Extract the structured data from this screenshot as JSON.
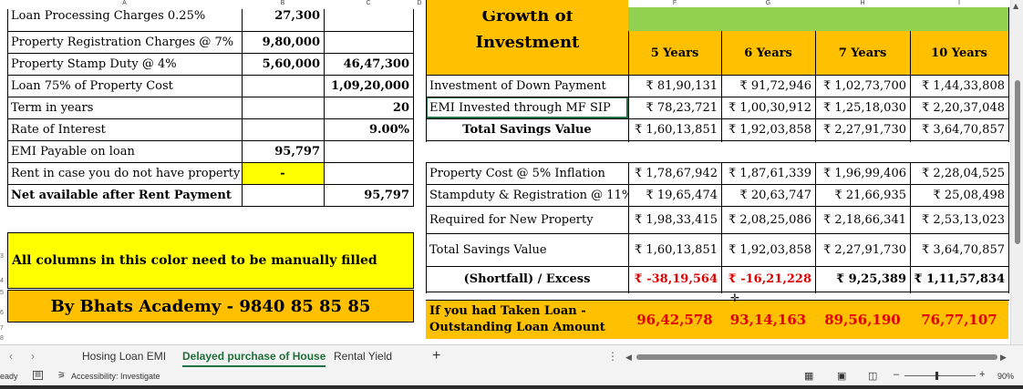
{
  "colors": {
    "yellow": "#ffff00",
    "orange": "#ffc000",
    "green": "#92d050",
    "red": "#e00000",
    "excel_green": "#217346"
  },
  "col_headers": [
    "A",
    "B",
    "C",
    "D",
    "E",
    "F",
    "G",
    "H",
    "I"
  ],
  "row_headers": [
    "3",
    "4",
    "5",
    "6",
    "7",
    "8"
  ],
  "left": {
    "rows": [
      {
        "label": "Loan Processing Charges 0.25%",
        "b": "27,300",
        "c": ""
      },
      {
        "label": "Property Registration Charges @ 7%",
        "b": "9,80,000",
        "c": ""
      },
      {
        "label": "Property Stamp Duty @ 4%",
        "b": "5,60,000",
        "c": "46,47,300"
      },
      {
        "label": "Loan 75% of Property Cost",
        "b": "",
        "c": "1,09,20,000"
      },
      {
        "label": "Term in years",
        "b": "",
        "c": "20"
      },
      {
        "label": "Rate of Interest",
        "b": "",
        "c": "9.00%"
      },
      {
        "label": "EMI Payable on loan",
        "b": "95,797",
        "c": ""
      },
      {
        "label": "Rent in case you do not have property",
        "b": "-",
        "c": ""
      },
      {
        "label": "Net available after Rent Payment",
        "b": "",
        "c": "95,797"
      }
    ],
    "note": "All columns in this color need to be manually filled",
    "footer": "By Bhats Academy - 9840 85 85 85"
  },
  "right": {
    "title_top": "Growth of",
    "title": "Investment",
    "years": [
      "5 Years",
      "6 Years",
      "7 Years",
      "10 Years"
    ],
    "rows": [
      {
        "label": "Investment of Down Payment",
        "values": [
          "₹ 81,90,131",
          "₹ 91,72,946",
          "₹ 1,02,73,700",
          "₹ 1,44,33,808"
        ]
      },
      {
        "label": "EMI Invested through MF SIP",
        "values": [
          "₹ 78,23,721",
          "₹ 1,00,30,912",
          "₹ 1,25,18,030",
          "₹ 2,20,37,048"
        ]
      },
      {
        "label": "Total Savings Value",
        "values": [
          "₹ 1,60,13,851",
          "₹ 1,92,03,858",
          "₹ 2,27,91,730",
          "₹ 3,64,70,857"
        ]
      },
      {
        "label": "Property Cost @ 5% Inflation",
        "values": [
          "₹ 1,78,67,942",
          "₹ 1,87,61,339",
          "₹ 1,96,99,406",
          "₹ 2,28,04,525"
        ]
      },
      {
        "label": "Stampduty & Registration @ 11%",
        "values": [
          "₹ 19,65,474",
          "₹ 20,63,747",
          "₹ 21,66,935",
          "₹ 25,08,498"
        ]
      },
      {
        "label": "Required for New Property",
        "values": [
          "₹ 1,98,33,415",
          "₹ 2,08,25,086",
          "₹ 2,18,66,341",
          "₹ 2,53,13,023"
        ]
      },
      {
        "label": "Total Savings Value",
        "values": [
          "₹ 1,60,13,851",
          "₹ 1,92,03,858",
          "₹ 2,27,91,730",
          "₹ 3,64,70,857"
        ]
      },
      {
        "label": "(Shortfall) /  Excess",
        "values": [
          "₹ -38,19,564",
          "₹ -16,21,228",
          "₹ 9,25,389",
          "₹ 1,11,57,834"
        ]
      }
    ],
    "loan_label_1": "If you had Taken Loan -",
    "loan_label_2": "Outstanding Loan Amount",
    "loan_values": [
      "96,42,578",
      "93,14,163",
      "89,56,190",
      "76,77,107"
    ]
  },
  "sheet_tabs": [
    "Hosing Loan EMI",
    "Delayed purchase of House",
    "Rental Yield"
  ],
  "add_sheet": "+",
  "status": {
    "ready": "eady",
    "accessibility": "Accessibility: Investigate",
    "zoom": "90%"
  }
}
